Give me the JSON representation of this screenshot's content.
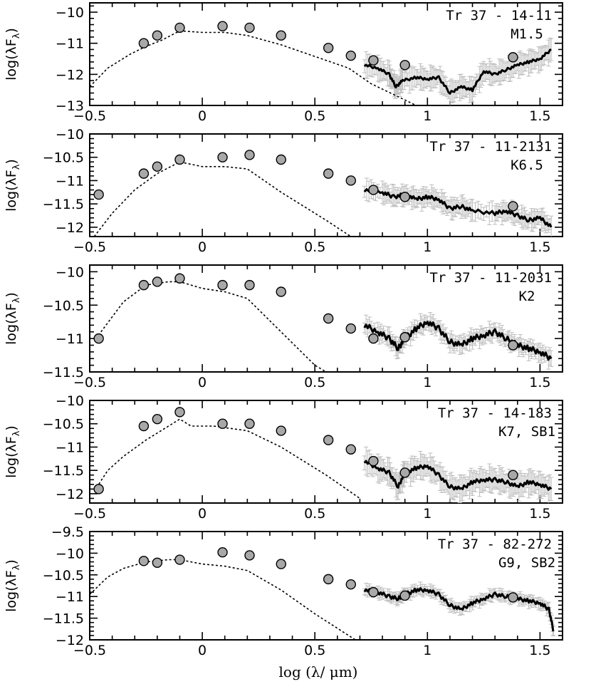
{
  "colors": {
    "axes": "#000000",
    "photometry_fill": "#a8a8a8",
    "errorbar": "#bdbdbd",
    "spectrum": "#000000",
    "model": "#000000"
  },
  "figure": {
    "xlabel": "log (λ/ μm)"
  },
  "chart_data": [
    {
      "type": "line",
      "object": "Tr 37 - 14-11",
      "spectral_type": "M1.5",
      "ylabel": "log(λF",
      "ylabel_sub": "λ",
      "xlim": [
        -0.5,
        1.6
      ],
      "ylim": [
        -13,
        -9.7
      ],
      "yticks": [
        -10,
        -11,
        -12,
        -13
      ],
      "xticks": [
        -0.5,
        0,
        0.5,
        1,
        1.5
      ],
      "photometry": {
        "x": [
          -0.26,
          -0.2,
          -0.1,
          0.09,
          0.21,
          0.35,
          0.56,
          0.66,
          0.76,
          0.9,
          1.38
        ],
        "y": [
          -11.0,
          -10.75,
          -10.5,
          -10.45,
          -10.5,
          -10.75,
          -11.15,
          -11.4,
          -11.55,
          -11.7,
          -11.45
        ]
      },
      "model": {
        "x": [
          -0.5,
          -0.42,
          -0.32,
          -0.25,
          -0.18,
          -0.1,
          0.0,
          0.1,
          0.2,
          0.35,
          0.55,
          0.65,
          0.75,
          0.85,
          0.95
        ],
        "y": [
          -12.4,
          -11.8,
          -11.35,
          -11.1,
          -10.9,
          -10.6,
          -10.65,
          -10.65,
          -10.75,
          -11.05,
          -11.55,
          -11.8,
          -12.3,
          -12.65,
          -13.0
        ]
      },
      "spectrum": {
        "x": [
          0.72,
          0.78,
          0.83,
          0.86,
          0.89,
          0.95,
          1.0,
          1.05,
          1.1,
          1.15,
          1.2,
          1.25,
          1.3,
          1.35,
          1.4,
          1.45,
          1.5,
          1.55
        ],
        "y": [
          -11.7,
          -11.8,
          -12.0,
          -12.4,
          -12.2,
          -12.1,
          -12.15,
          -12.1,
          -12.6,
          -12.4,
          -12.5,
          -11.9,
          -12.0,
          -11.85,
          -11.7,
          -11.6,
          -11.5,
          -11.2
        ]
      },
      "spectrum_error": 0.35
    },
    {
      "type": "line",
      "object": "Tr 37 - 11-2131",
      "spectral_type": "K6.5",
      "ylabel": "log(λF",
      "ylabel_sub": "λ",
      "xlim": [
        -0.5,
        1.6
      ],
      "ylim": [
        -12.2,
        -10.0
      ],
      "yticks": [
        -10,
        -10.5,
        -11,
        -11.5,
        -12
      ],
      "xticks": [
        -0.5,
        0,
        0.5,
        1,
        1.5
      ],
      "photometry": {
        "x": [
          -0.46,
          -0.26,
          -0.2,
          -0.1,
          0.09,
          0.21,
          0.35,
          0.56,
          0.66,
          0.76,
          0.9,
          1.38
        ],
        "y": [
          -11.3,
          -10.85,
          -10.7,
          -10.55,
          -10.5,
          -10.45,
          -10.55,
          -10.85,
          -11.0,
          -11.2,
          -11.35,
          -11.55
        ]
      },
      "model": {
        "x": [
          -0.48,
          -0.4,
          -0.3,
          -0.2,
          -0.1,
          0.0,
          0.1,
          0.2,
          0.35,
          0.55,
          0.66
        ],
        "y": [
          -12.2,
          -11.7,
          -11.2,
          -10.85,
          -10.6,
          -10.7,
          -10.7,
          -10.75,
          -11.25,
          -11.85,
          -12.2
        ]
      },
      "spectrum": {
        "x": [
          0.72,
          0.8,
          0.85,
          0.9,
          0.95,
          1.0,
          1.05,
          1.1,
          1.15,
          1.2,
          1.3,
          1.35,
          1.4,
          1.45,
          1.5,
          1.55
        ],
        "y": [
          -11.2,
          -11.25,
          -11.35,
          -11.3,
          -11.4,
          -11.35,
          -11.4,
          -11.6,
          -11.55,
          -11.65,
          -11.7,
          -11.65,
          -11.75,
          -11.85,
          -11.8,
          -12.0
        ]
      },
      "spectrum_error": 0.2
    },
    {
      "type": "line",
      "object": "Tr 37 - 11-2031",
      "spectral_type": "K2",
      "ylabel": "log(λF",
      "ylabel_sub": "λ",
      "xlim": [
        -0.5,
        1.6
      ],
      "ylim": [
        -11.5,
        -9.9
      ],
      "yticks": [
        -10,
        -10.5,
        -11,
        -11.5
      ],
      "xticks": [
        -0.5,
        0,
        0.5,
        1,
        1.5
      ],
      "photometry": {
        "x": [
          -0.46,
          -0.26,
          -0.2,
          -0.1,
          0.09,
          0.21,
          0.35,
          0.56,
          0.66,
          0.76,
          0.9,
          1.38
        ],
        "y": [
          -11.0,
          -10.2,
          -10.15,
          -10.1,
          -10.2,
          -10.2,
          -10.3,
          -10.7,
          -10.85,
          -11.0,
          -10.98,
          -11.1
        ]
      },
      "model": {
        "x": [
          -0.45,
          -0.35,
          -0.25,
          -0.15,
          -0.1,
          0.0,
          0.1,
          0.2,
          0.35,
          0.5,
          0.55
        ],
        "y": [
          -10.9,
          -10.45,
          -10.2,
          -10.15,
          -10.15,
          -10.25,
          -10.3,
          -10.4,
          -10.9,
          -11.4,
          -11.5
        ]
      },
      "spectrum": {
        "x": [
          0.72,
          0.78,
          0.83,
          0.87,
          0.9,
          0.95,
          1.0,
          1.05,
          1.1,
          1.15,
          1.2,
          1.25,
          1.3,
          1.35,
          1.4,
          1.45,
          1.5,
          1.55
        ],
        "y": [
          -10.8,
          -10.9,
          -11.0,
          -11.15,
          -11.0,
          -10.85,
          -10.75,
          -10.85,
          -11.05,
          -11.1,
          -11.0,
          -10.95,
          -10.9,
          -11.0,
          -11.1,
          -11.15,
          -11.2,
          -11.3
        ]
      },
      "spectrum_error": 0.12
    },
    {
      "type": "line",
      "object": "Tr 37 - 14-183",
      "spectral_type": "K7, SB1",
      "ylabel": "log(λF",
      "ylabel_sub": "λ",
      "xlim": [
        -0.5,
        1.6
      ],
      "ylim": [
        -12.2,
        -10.0
      ],
      "yticks": [
        -10,
        -10.5,
        -11,
        -11.5,
        -12
      ],
      "xticks": [
        -0.5,
        0,
        0.5,
        1,
        1.5
      ],
      "photometry": {
        "x": [
          -0.46,
          -0.26,
          -0.2,
          -0.1,
          0.09,
          0.21,
          0.35,
          0.56,
          0.66,
          0.76,
          0.9,
          1.38
        ],
        "y": [
          -11.9,
          -10.55,
          -10.4,
          -10.25,
          -10.5,
          -10.5,
          -10.65,
          -10.85,
          -11.05,
          -11.3,
          -11.55,
          -11.6
        ]
      },
      "model": {
        "x": [
          -0.48,
          -0.42,
          -0.35,
          -0.25,
          -0.15,
          -0.1,
          -0.05,
          0.05,
          0.2,
          0.35,
          0.55,
          0.7
        ],
        "y": [
          -11.95,
          -11.5,
          -11.2,
          -10.85,
          -10.55,
          -10.4,
          -10.55,
          -10.55,
          -10.65,
          -11.0,
          -11.6,
          -12.1
        ]
      },
      "spectrum": {
        "x": [
          0.72,
          0.78,
          0.83,
          0.87,
          0.9,
          0.95,
          1.0,
          1.05,
          1.1,
          1.15,
          1.2,
          1.25,
          1.3,
          1.35,
          1.4,
          1.45,
          1.5,
          1.55
        ],
        "y": [
          -11.3,
          -11.45,
          -11.55,
          -11.85,
          -11.55,
          -11.45,
          -11.4,
          -11.6,
          -11.85,
          -11.9,
          -11.75,
          -11.7,
          -11.7,
          -11.75,
          -11.85,
          -11.75,
          -11.8,
          -11.9
        ]
      },
      "spectrum_error": 0.25
    },
    {
      "type": "line",
      "object": "Tr 37 - 82-272",
      "spectral_type": "G9, SB2",
      "ylabel": "log(λF",
      "ylabel_sub": "λ",
      "xlim": [
        -0.5,
        1.6
      ],
      "ylim": [
        -12,
        -9.5
      ],
      "yticks": [
        -9.5,
        -10,
        -10.5,
        -11,
        -11.5,
        -12
      ],
      "xticks": [
        -0.5,
        0,
        0.5,
        1,
        1.5
      ],
      "photometry": {
        "x": [
          -0.26,
          -0.2,
          -0.1,
          0.09,
          0.21,
          0.35,
          0.56,
          0.66,
          0.76,
          0.9,
          1.38
        ],
        "y": [
          -10.18,
          -10.22,
          -10.15,
          -9.98,
          -10.05,
          -10.25,
          -10.6,
          -10.72,
          -10.9,
          -10.98,
          -11.02
        ]
      },
      "model": {
        "x": [
          -0.5,
          -0.42,
          -0.35,
          -0.25,
          -0.15,
          -0.1,
          0.0,
          0.1,
          0.2,
          0.35,
          0.5,
          0.68
        ],
        "y": [
          -10.95,
          -10.55,
          -10.35,
          -10.2,
          -10.15,
          -10.15,
          -10.25,
          -10.3,
          -10.4,
          -10.85,
          -11.4,
          -12.0
        ]
      },
      "spectrum": {
        "x": [
          0.72,
          0.78,
          0.83,
          0.87,
          0.9,
          0.95,
          1.0,
          1.05,
          1.1,
          1.15,
          1.2,
          1.25,
          1.3,
          1.35,
          1.4,
          1.45,
          1.5,
          1.54,
          1.56
        ],
        "y": [
          -10.85,
          -10.9,
          -11.0,
          -11.05,
          -10.95,
          -10.85,
          -10.85,
          -10.95,
          -11.2,
          -11.3,
          -11.15,
          -11.05,
          -10.95,
          -11.0,
          -11.05,
          -11.1,
          -11.15,
          -11.3,
          -11.8
        ]
      },
      "spectrum_error": 0.12
    }
  ]
}
